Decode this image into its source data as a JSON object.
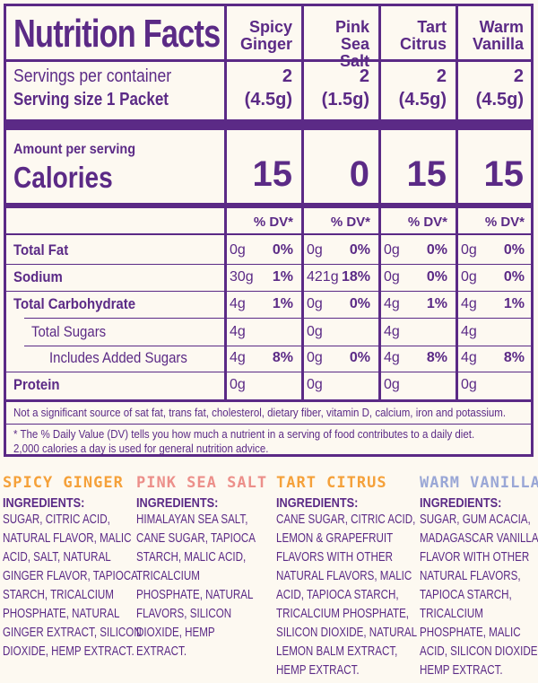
{
  "title": "Nutrition Facts",
  "columns": [
    {
      "line1": "Spicy",
      "line2": "Ginger"
    },
    {
      "line1": "Pink",
      "line2": "Sea Salt"
    },
    {
      "line1": "Tart",
      "line2": "Citrus"
    },
    {
      "line1": "Warm",
      "line2": "Vanilla"
    }
  ],
  "servings_label": "Servings per container",
  "serving_size_label": "Serving size 1 Packet",
  "servings": [
    "2",
    "2",
    "2",
    "2"
  ],
  "serving_sizes": [
    "(4.5g)",
    "(1.5g)",
    "(4.5g)",
    "(4.5g)"
  ],
  "amount_label": "Amount per serving",
  "calories_label": "Calories",
  "calories": [
    "15",
    "0",
    "15",
    "15"
  ],
  "dv_header": "% DV*",
  "rows": [
    {
      "label": "Total Fat",
      "bold": true,
      "indent": 0,
      "values": [
        [
          "0g",
          "0%"
        ],
        [
          "0g",
          "0%"
        ],
        [
          "0g",
          "0%"
        ],
        [
          "0g",
          "0%"
        ]
      ]
    },
    {
      "label": "Sodium",
      "bold": true,
      "indent": 0,
      "values": [
        [
          "30g",
          "1%"
        ],
        [
          "421g",
          "18%"
        ],
        [
          "0g",
          "0%"
        ],
        [
          "0g",
          "0%"
        ]
      ]
    },
    {
      "label": "Total Carbohydrate",
      "bold": true,
      "indent": 0,
      "values": [
        [
          "4g",
          "1%"
        ],
        [
          "0g",
          "0%"
        ],
        [
          "4g",
          "1%"
        ],
        [
          "4g",
          "1%"
        ]
      ]
    },
    {
      "label": "Total Sugars",
      "bold": false,
      "indent": 1,
      "values": [
        [
          "4g",
          ""
        ],
        [
          "0g",
          ""
        ],
        [
          "4g",
          ""
        ],
        [
          "4g",
          ""
        ]
      ]
    },
    {
      "label": "Includes Added Sugars",
      "bold": false,
      "indent": 2,
      "values": [
        [
          "4g",
          "8%"
        ],
        [
          "0g",
          "0%"
        ],
        [
          "4g",
          "8%"
        ],
        [
          "4g",
          "8%"
        ]
      ]
    },
    {
      "label": "Protein",
      "bold": true,
      "indent": 0,
      "values": [
        [
          "0g",
          ""
        ],
        [
          "0g",
          ""
        ],
        [
          "0g",
          ""
        ],
        [
          "0g",
          ""
        ]
      ]
    }
  ],
  "footnote1": "Not a significant source of sat fat, trans fat, cholesterol, dietary fiber, vitamin D, calcium, iron and potassium.",
  "footnote2a": "* The % Daily Value (DV) tells you how much a nutrient in a serving of food contributes to a daily diet.",
  "footnote2b": "2,000 calories a day is used for general nutrition advice.",
  "flavors": [
    {
      "name": "SPICY GINGER",
      "color": "#f5a13a",
      "heading": "INGREDIENTS:",
      "lines": [
        "SUGAR, CITRIC ACID,",
        "NATURAL FLAVOR, MALIC",
        "ACID, SALT, NATURAL",
        "GINGER FLAVOR, TAPIOCA",
        "STARCH, TRICALCIUM",
        "PHOSPHATE, NATURAL",
        "GINGER EXTRACT, SILICON",
        "DIOXIDE, HEMP EXTRACT."
      ]
    },
    {
      "name": "PINK SEA SALT",
      "color": "#ec8f8a",
      "heading": "INGREDIENTS:",
      "lines": [
        "HIMALAYAN SEA SALT,",
        "CANE SUGAR, TAPIOCA",
        "STARCH, MALIC ACID,",
        "TRICALCIUM",
        "PHOSPHATE, NATURAL",
        "FLAVORS, SILICON",
        "DIOXIDE, HEMP",
        "EXTRACT."
      ]
    },
    {
      "name": "TART CITRUS",
      "color": "#f5a13a",
      "heading": "INGREDIENTS:",
      "lines": [
        "CANE SUGAR, CITRIC ACID,",
        "LEMON & GRAPEFRUIT",
        "FLAVORS WITH OTHER",
        "NATURAL FLAVORS, MALIC",
        "ACID, TAPIOCA STARCH,",
        "TRICALCIUM PHOSPHATE,",
        "SILICON DIOXIDE, NATURAL",
        "LEMON BALM EXTRACT,",
        "HEMP EXTRACT."
      ]
    },
    {
      "name": "WARM VANILLA",
      "color": "#9aa7d6",
      "heading": "INGREDIENTS:",
      "lines": [
        "SUGAR, GUM ACACIA,",
        "MADAGASCAR VANILLA",
        "FLAVOR WITH OTHER",
        "NATURAL FLAVORS,",
        "TAPIOCA STARCH,",
        "TRICALCIUM",
        "PHOSPHATE, MALIC",
        "ACID, SILICON DIOXIDE,",
        "HEMP EXTRACT."
      ]
    }
  ],
  "colors": {
    "purple": "#5b2a86",
    "background": "#fdf9f1"
  }
}
